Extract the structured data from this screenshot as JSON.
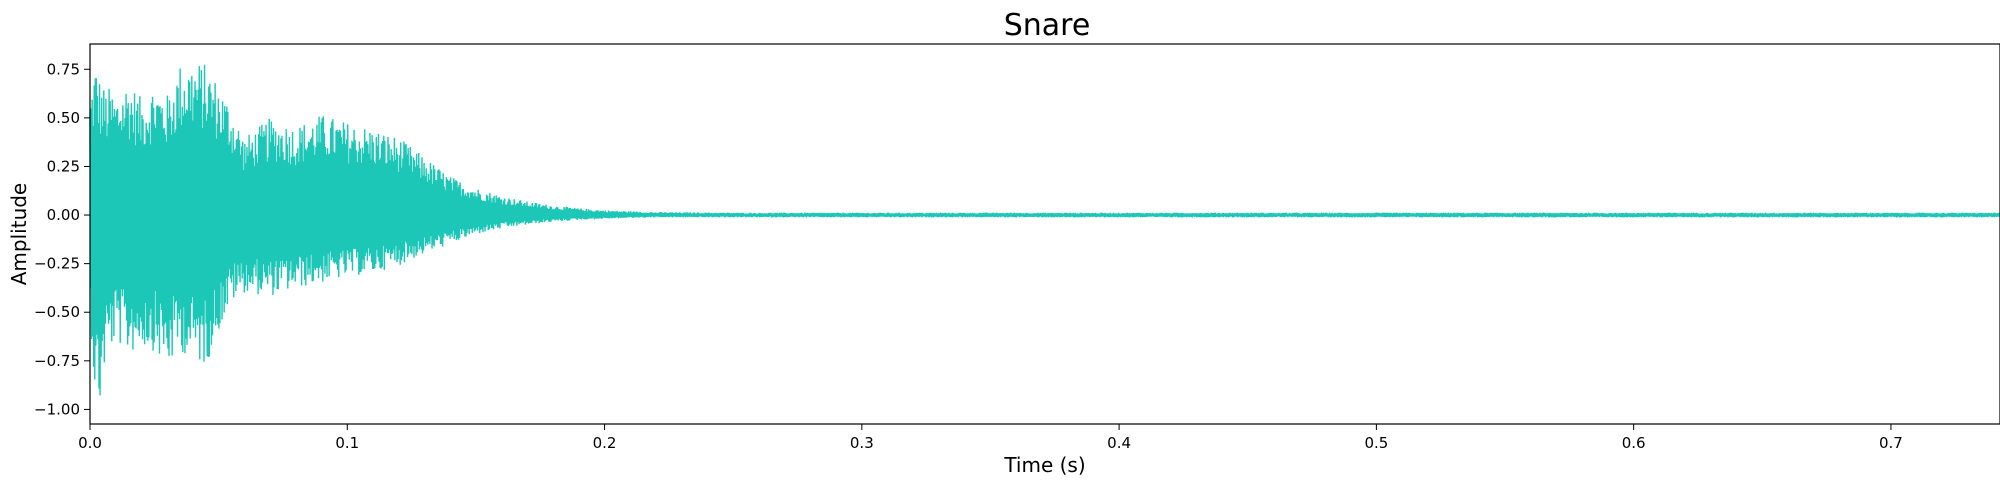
{
  "chart_data": {
    "type": "line",
    "title": "Snare",
    "xlabel": "Time (s)",
    "ylabel": "Amplitude",
    "xlim": [
      0.0,
      0.742
    ],
    "ylim": [
      -1.075,
      0.88
    ],
    "grid": false,
    "legend": "none",
    "x_ticks": [
      0.0,
      0.1,
      0.2,
      0.3,
      0.4,
      0.5,
      0.6,
      0.7
    ],
    "x_tick_labels": [
      "0.0",
      "0.1",
      "0.2",
      "0.3",
      "0.4",
      "0.5",
      "0.6",
      "0.7"
    ],
    "y_ticks": [
      0.75,
      0.5,
      0.25,
      0.0,
      -0.25,
      -0.5,
      -0.75,
      -1.0
    ],
    "y_tick_labels": [
      "0.75",
      "0.50",
      "0.25",
      "0.00",
      "−0.25",
      "−0.50",
      "−0.75",
      "−1.00"
    ],
    "color": "#1cc7b7",
    "series": [
      {
        "x": [
          0.0,
          0.002,
          0.004,
          0.006,
          0.008,
          0.01,
          0.015,
          0.02,
          0.025,
          0.03,
          0.035,
          0.04,
          0.045,
          0.05,
          0.055,
          0.06,
          0.07,
          0.08,
          0.09,
          0.1,
          0.11,
          0.12,
          0.13,
          0.14,
          0.15,
          0.16,
          0.17,
          0.18,
          0.19,
          0.2,
          0.21,
          0.22,
          0.25,
          0.3,
          0.35,
          0.4,
          0.45,
          0.5,
          0.55,
          0.6,
          0.65,
          0.7,
          0.742
        ],
        "upper": [
          0.62,
          0.8,
          0.7,
          0.65,
          0.66,
          0.62,
          0.7,
          0.6,
          0.68,
          0.62,
          0.78,
          0.8,
          0.78,
          0.68,
          0.56,
          0.4,
          0.5,
          0.46,
          0.52,
          0.48,
          0.45,
          0.4,
          0.3,
          0.2,
          0.14,
          0.1,
          0.07,
          0.05,
          0.035,
          0.025,
          0.02,
          0.015,
          0.012,
          0.012,
          0.012,
          0.012,
          0.012,
          0.012,
          0.012,
          0.012,
          0.012,
          0.012,
          0.012
        ],
        "lower": [
          -0.5,
          -0.95,
          -1.0,
          -0.75,
          -0.7,
          -0.65,
          -0.72,
          -0.68,
          -0.7,
          -0.8,
          -0.7,
          -0.75,
          -0.78,
          -0.6,
          -0.45,
          -0.4,
          -0.42,
          -0.38,
          -0.35,
          -0.32,
          -0.3,
          -0.26,
          -0.2,
          -0.15,
          -0.1,
          -0.07,
          -0.05,
          -0.035,
          -0.025,
          -0.02,
          -0.015,
          -0.012,
          -0.012,
          -0.012,
          -0.012,
          -0.012,
          -0.012,
          -0.012,
          -0.012,
          -0.012,
          -0.012,
          -0.012,
          -0.012
        ]
      }
    ]
  }
}
